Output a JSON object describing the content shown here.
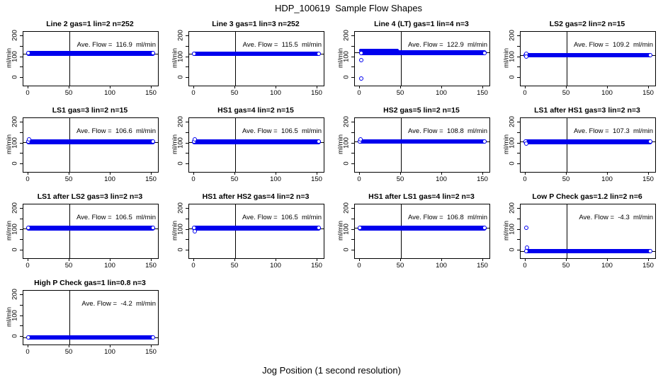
{
  "figure": {
    "title": "HDP_100619  Sample Flow Shapes",
    "xlabel": "Jog Position (1 second resolution)",
    "ylabel": "ml/min",
    "point_color": "#0000EE",
    "axis_color": "#000000"
  },
  "chart_data": {
    "type": "scatter",
    "title": "HDP_100619  Sample Flow Shapes",
    "xlabel": "Jog Position (1 second resolution)",
    "ylabel": "ml/min",
    "xlim": [
      -6,
      158
    ],
    "ylim": [
      -40,
      220
    ],
    "x_ticks": [
      0,
      50,
      100,
      150
    ],
    "y_ticks": [
      0,
      50,
      100,
      150,
      200
    ],
    "y_tick_labels": [
      0,
      100,
      200
    ],
    "vline_x": 50,
    "grid": false,
    "legend": "none",
    "panels": [
      {
        "title": "Line 2 gas=1 lin=2 n=252",
        "ave_flow": 116.9,
        "ave_label": "Ave. Flow =  116.9  ml/min",
        "bands": [
          {
            "x0": 0,
            "x1": 152,
            "y": 117,
            "h": 22,
            "caps": true
          }
        ],
        "points": []
      },
      {
        "title": "Line 3 gas=1 lin=3 n=252",
        "ave_flow": 115.5,
        "ave_label": "Ave. Flow =  115.5  ml/min",
        "bands": [
          {
            "x0": 0,
            "x1": 152,
            "y": 116,
            "h": 22,
            "caps": true
          }
        ],
        "points": []
      },
      {
        "title": "Line 4 (LT) gas=1 lin=4 n=3",
        "ave_flow": 122.9,
        "ave_label": "Ave. Flow =  122.9  ml/min",
        "bands": [
          {
            "x0": 2,
            "x1": 152,
            "y": 120,
            "h": 22,
            "caps": true
          },
          {
            "x0": 2,
            "x1": 45,
            "y": 131,
            "h": 14,
            "caps": false
          }
        ],
        "points": [
          [
            2,
            86
          ],
          [
            2,
            -4
          ]
        ]
      },
      {
        "title": "LS2 gas=2 lin=2 n=15",
        "ave_flow": 109.2,
        "ave_label": "Ave. Flow =  109.2  ml/min",
        "bands": [
          {
            "x0": 0,
            "x1": 152,
            "y": 109,
            "h": 22,
            "caps": true
          }
        ],
        "points": [
          [
            1,
            116
          ],
          [
            1,
            101
          ]
        ]
      },
      {
        "title": "LS1 gas=3 lin=2 n=15",
        "ave_flow": 106.6,
        "ave_label": "Ave. Flow =  106.6  ml/min",
        "bands": [
          {
            "x0": 0,
            "x1": 152,
            "y": 107,
            "h": 22,
            "caps": true
          }
        ],
        "points": [
          [
            1,
            117
          ]
        ]
      },
      {
        "title": "HS1 gas=4 lin=2 n=15",
        "ave_flow": 106.5,
        "ave_label": "Ave. Flow =  106.5  ml/min",
        "bands": [
          {
            "x0": 0,
            "x1": 152,
            "y": 107,
            "h": 22,
            "caps": true
          }
        ],
        "points": [
          [
            1,
            117
          ]
        ]
      },
      {
        "title": "HS2 gas=5 lin=2 n=15",
        "ave_flow": 108.8,
        "ave_label": "Ave. Flow =  108.8  ml/min",
        "bands": [
          {
            "x0": 0,
            "x1": 152,
            "y": 109,
            "h": 22,
            "caps": true
          }
        ],
        "points": [
          [
            1,
            118
          ]
        ]
      },
      {
        "title": "LS1 after HS1 gas=3 lin=2 n=3",
        "ave_flow": 107.3,
        "ave_label": "Ave. Flow =  107.3  ml/min",
        "bands": [
          {
            "x0": 0,
            "x1": 152,
            "y": 107,
            "h": 22,
            "caps": true
          }
        ],
        "points": [
          [
            1,
            99
          ]
        ]
      },
      {
        "title": "LS1 after LS2 gas=3 lin=2 n=3",
        "ave_flow": 106.5,
        "ave_label": "Ave. Flow =  106.5  ml/min",
        "bands": [
          {
            "x0": 0,
            "x1": 152,
            "y": 107,
            "h": 22,
            "caps": true
          }
        ],
        "points": []
      },
      {
        "title": "HS1 after HS2 gas=4 lin=2 n=3",
        "ave_flow": 106.5,
        "ave_label": "Ave. Flow =  106.5  ml/min",
        "bands": [
          {
            "x0": 0,
            "x1": 152,
            "y": 107,
            "h": 22,
            "caps": true
          }
        ],
        "points": [
          [
            1,
            92
          ]
        ]
      },
      {
        "title": "HS1 after LS1 gas=4 lin=2 n=3",
        "ave_flow": 106.8,
        "ave_label": "Ave. Flow =  106.8  ml/min",
        "bands": [
          {
            "x0": 0,
            "x1": 152,
            "y": 107,
            "h": 22,
            "caps": true
          }
        ],
        "points": []
      },
      {
        "title": "Low P Check gas=1.2 lin=2 n=6",
        "ave_flow": -4.3,
        "ave_label": "Ave. Flow =  -4.3  ml/min",
        "bands": [
          {
            "x0": 1,
            "x1": 152,
            "y": -4,
            "h": 22,
            "caps": true
          }
        ],
        "points": [
          [
            1,
            110
          ],
          [
            2,
            12
          ]
        ]
      },
      {
        "title": "High P Check gas=1 lin=0.8 n=3",
        "ave_flow": -4.2,
        "ave_label": "Ave. Flow =  -4.2  ml/min",
        "bands": [
          {
            "x0": 0,
            "x1": 152,
            "y": -4,
            "h": 22,
            "caps": true
          }
        ],
        "points": []
      }
    ]
  }
}
